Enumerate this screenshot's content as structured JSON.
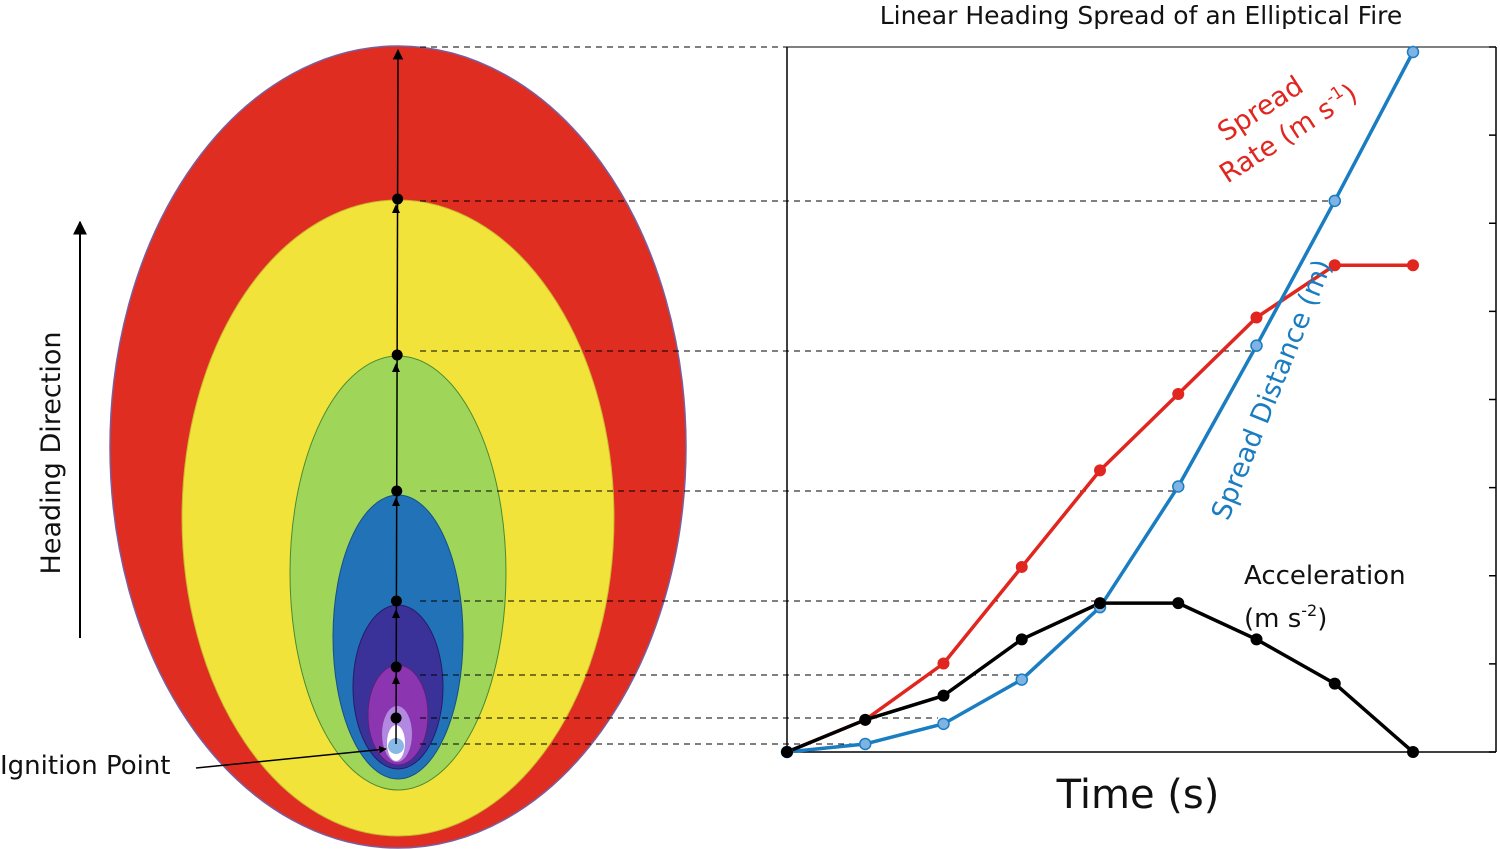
{
  "title": "Linear Heading Spread of an Elliptical Fire",
  "heading_direction_label": "Heading Direction",
  "ignition_label": "Ignition Point",
  "time_axis_label": "Time (s)",
  "series": {
    "spread_rate": {
      "line1": "Spread",
      "line2_base": "Rate (m s",
      "line2_sup": "-1",
      "line2_end": ")",
      "color": "#e0261f"
    },
    "spread_distance": {
      "base": "Spread Distance (m)",
      "color": "#1a7dc2"
    },
    "acceleration": {
      "line1": "Acceleration",
      "line2_base": "(m s",
      "line2_sup": "-2",
      "line2_end": ")",
      "color": "#000000"
    }
  },
  "fire_colors": {
    "stage8": "#e02d22",
    "stage7": "#f2e33a",
    "stage6": "#9fd65a",
    "stage5": "#2272b8",
    "stage4": "#3b3299",
    "stage3": "#8b35b0",
    "stage2": "#b388e0",
    "stage1": "#ffffff",
    "ignition": "#8ab8e6"
  },
  "chart_data": {
    "type": "line",
    "x": [
      0,
      1,
      2,
      3,
      4,
      5,
      6,
      7,
      8
    ],
    "xlabel": "Time (s)",
    "ticks_right": 8,
    "series": [
      {
        "name": "Spread Rate (m s-1)",
        "values": [
          0,
          0.8,
          2.2,
          4.6,
          7.0,
          8.9,
          10.8,
          12.1,
          12.1
        ]
      },
      {
        "name": "Spread Distance (m)",
        "values": [
          0,
          0.2,
          0.7,
          1.8,
          3.6,
          6.6,
          10.1,
          13.7,
          17.4
        ]
      },
      {
        "name": "Acceleration (m s-2)",
        "values": [
          0,
          0.8,
          1.4,
          2.8,
          3.7,
          3.7,
          2.8,
          1.7,
          0
        ]
      }
    ]
  }
}
